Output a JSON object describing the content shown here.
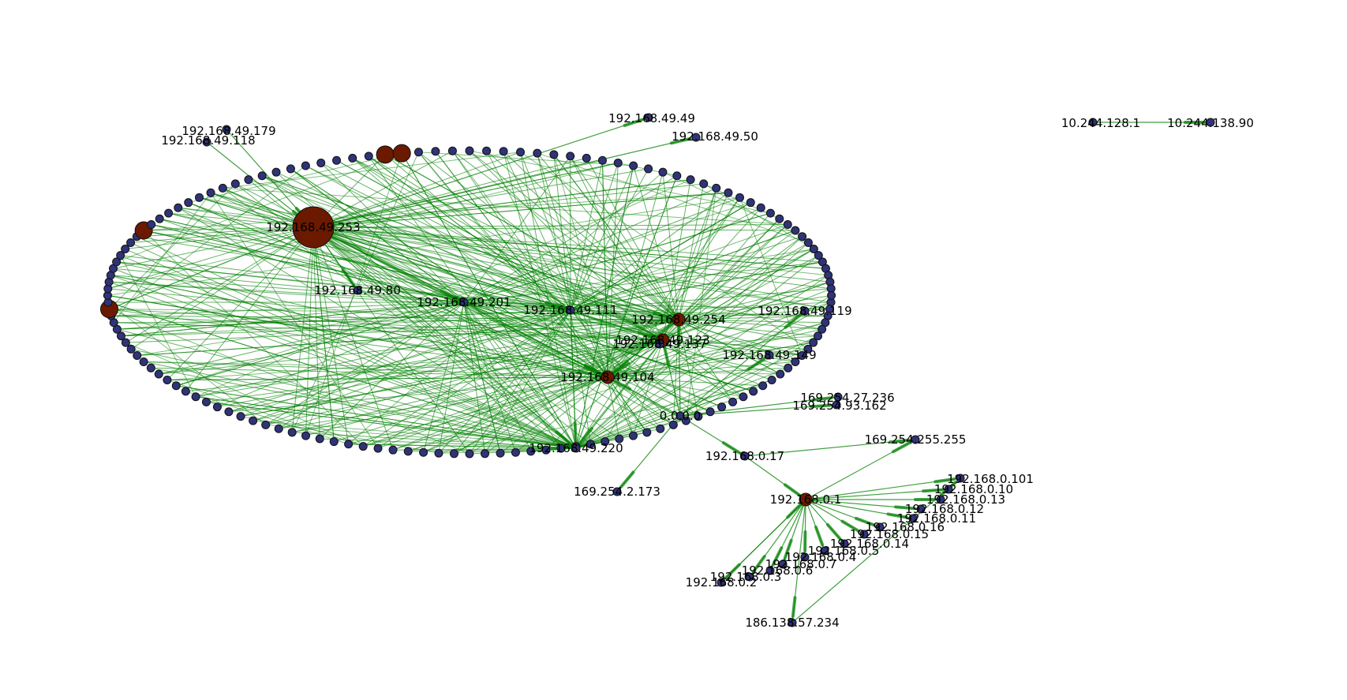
{
  "colors": {
    "edge": "#008000",
    "node_default": "#2f3377",
    "node_hub": "#6b1a00",
    "node_outline": "#111111",
    "background": "#ffffff"
  },
  "graph": {
    "nodes": [
      {
        "id": "192.168.49.253",
        "label": "192.168.49.253",
        "kind": "hub",
        "weight": 6
      },
      {
        "id": "192.168.49.179",
        "label": "192.168.49.179",
        "kind": "host",
        "weight": 1
      },
      {
        "id": "192.168.49.118",
        "label": "192.168.49.118",
        "kind": "host",
        "weight": 1
      },
      {
        "id": "192.168.49.49",
        "label": "192.168.49.49",
        "kind": "host",
        "weight": 1
      },
      {
        "id": "192.168.49.50",
        "label": "192.168.49.50",
        "kind": "host",
        "weight": 1
      },
      {
        "id": "192.168.49.80",
        "label": "192.168.49.80",
        "kind": "host",
        "weight": 1
      },
      {
        "id": "192.168.49.201",
        "label": "192.168.49.201",
        "kind": "host",
        "weight": 1
      },
      {
        "id": "192.168.49.111",
        "label": "192.168.49.111",
        "kind": "host",
        "weight": 1
      },
      {
        "id": "192.168.49.254",
        "label": "192.168.49.254",
        "kind": "hub",
        "weight": 2
      },
      {
        "id": "192.168.49.123",
        "label": "192.168.49.123",
        "kind": "hub",
        "weight": 2
      },
      {
        "id": "192.168.49.137",
        "label": "192.168.49.137",
        "kind": "host",
        "weight": 1
      },
      {
        "id": "192.168.49.104",
        "label": "192.168.49.104",
        "kind": "hub",
        "weight": 2
      },
      {
        "id": "192.168.49.220",
        "label": "192.168.49.220",
        "kind": "host",
        "weight": 1
      },
      {
        "id": "192.168.49.149",
        "label": "192.168.49.149",
        "kind": "host",
        "weight": 1
      },
      {
        "id": "192.168.49.119",
        "label": "192.168.49.119",
        "kind": "host",
        "weight": 1
      },
      {
        "id": "0.0.0.0",
        "label": "0.0.0.0",
        "kind": "host",
        "weight": 1
      },
      {
        "id": "169.254.27.236",
        "label": "169.254.27.236",
        "kind": "host",
        "weight": 1
      },
      {
        "id": "169.254.93.162",
        "label": "169.254.93.162",
        "kind": "host",
        "weight": 1
      },
      {
        "id": "169.254.2.173",
        "label": "169.254.2.173",
        "kind": "host",
        "weight": 1
      },
      {
        "id": "169.254.255.255",
        "label": "169.254.255.255",
        "kind": "host",
        "weight": 1
      },
      {
        "id": "192.168.0.17",
        "label": "192.168.0.17",
        "kind": "host",
        "weight": 1
      },
      {
        "id": "192.168.0.1",
        "label": "192.168.0.1",
        "kind": "hub",
        "weight": 2
      },
      {
        "id": "192.168.0.101",
        "label": "192.168.0.101",
        "kind": "host",
        "weight": 1
      },
      {
        "id": "192.168.0.10",
        "label": "192.168.0.10",
        "kind": "host",
        "weight": 1
      },
      {
        "id": "192.168.0.13",
        "label": "192.168.0.13",
        "kind": "host",
        "weight": 1
      },
      {
        "id": "192.168.0.12",
        "label": "192.168.0.12",
        "kind": "host",
        "weight": 1
      },
      {
        "id": "192.168.0.11",
        "label": "192.168.0.11",
        "kind": "host",
        "weight": 1
      },
      {
        "id": "192.168.0.16",
        "label": "192.168.0.16",
        "kind": "host",
        "weight": 1
      },
      {
        "id": "192.168.0.15",
        "label": "192.168.0.15",
        "kind": "host",
        "weight": 1
      },
      {
        "id": "192.168.0.14",
        "label": "192.168.0.14",
        "kind": "host",
        "weight": 1
      },
      {
        "id": "192.168.0.5",
        "label": "192.168.0.5",
        "kind": "host",
        "weight": 1
      },
      {
        "id": "192.168.0.4",
        "label": "192.168.0.4",
        "kind": "host",
        "weight": 1
      },
      {
        "id": "192.168.0.7",
        "label": "192.168.0.7",
        "kind": "host",
        "weight": 1
      },
      {
        "id": "192.168.0.6",
        "label": "192.168.0.6",
        "kind": "host",
        "weight": 1
      },
      {
        "id": "192.168.0.3",
        "label": "192.168.0.3",
        "kind": "host",
        "weight": 1
      },
      {
        "id": "192.168.0.2",
        "label": "192.168.0.2",
        "kind": "host",
        "weight": 1
      },
      {
        "id": "186.138.57.234",
        "label": "186.138.57.234",
        "kind": "host",
        "weight": 1
      },
      {
        "id": "10.244.128.1",
        "label": "10.244.128.1",
        "kind": "host",
        "weight": 1
      },
      {
        "id": "10.244.138.90",
        "label": "10.244.138.90",
        "kind": "host",
        "weight": 1
      }
    ],
    "edges": [
      [
        "192.168.49.179",
        "192.168.49.253"
      ],
      [
        "192.168.49.118",
        "192.168.49.253"
      ],
      [
        "192.168.49.253",
        "192.168.49.49"
      ],
      [
        "192.168.49.253",
        "192.168.49.50"
      ],
      [
        "192.168.49.253",
        "192.168.49.80"
      ],
      [
        "192.168.49.253",
        "192.168.49.201"
      ],
      [
        "192.168.49.253",
        "192.168.49.111"
      ],
      [
        "192.168.49.253",
        "192.168.49.254"
      ],
      [
        "192.168.49.253",
        "192.168.49.123"
      ],
      [
        "192.168.49.253",
        "192.168.49.104"
      ],
      [
        "192.168.49.253",
        "192.168.49.220"
      ],
      [
        "192.168.49.201",
        "192.168.49.104"
      ],
      [
        "192.168.49.111",
        "192.168.49.220"
      ],
      [
        "192.168.49.254",
        "192.168.49.104"
      ],
      [
        "192.168.49.123",
        "192.168.49.220"
      ],
      [
        "192.168.49.137",
        "192.168.49.104"
      ],
      [
        "0.0.0.0",
        "192.168.49.254"
      ],
      [
        "0.0.0.0",
        "192.168.49.123"
      ],
      [
        "0.0.0.0",
        "192.168.49.104"
      ],
      [
        "0.0.0.0",
        "192.168.49.149"
      ],
      [
        "0.0.0.0",
        "192.168.49.119"
      ],
      [
        "0.0.0.0",
        "169.254.27.236"
      ],
      [
        "0.0.0.0",
        "169.254.93.162"
      ],
      [
        "0.0.0.0",
        "169.254.2.173"
      ],
      [
        "0.0.0.0",
        "192.168.0.17"
      ],
      [
        "192.168.0.17",
        "169.254.255.255"
      ],
      [
        "192.168.0.17",
        "192.168.0.1"
      ],
      [
        "192.168.0.1",
        "169.254.255.255"
      ],
      [
        "192.168.0.1",
        "192.168.0.101"
      ],
      [
        "192.168.0.1",
        "192.168.0.10"
      ],
      [
        "192.168.0.1",
        "192.168.0.13"
      ],
      [
        "192.168.0.1",
        "192.168.0.12"
      ],
      [
        "192.168.0.1",
        "192.168.0.11"
      ],
      [
        "192.168.0.1",
        "192.168.0.16"
      ],
      [
        "192.168.0.1",
        "192.168.0.15"
      ],
      [
        "192.168.0.1",
        "192.168.0.14"
      ],
      [
        "192.168.0.1",
        "192.168.0.5"
      ],
      [
        "192.168.0.1",
        "192.168.0.4"
      ],
      [
        "192.168.0.1",
        "192.168.0.7"
      ],
      [
        "192.168.0.1",
        "192.168.0.6"
      ],
      [
        "192.168.0.1",
        "192.168.0.3"
      ],
      [
        "192.168.0.1",
        "192.168.0.2"
      ],
      [
        "192.168.0.1",
        "186.138.57.234"
      ],
      [
        "186.138.57.234",
        "192.168.0.101"
      ],
      [
        "192.168.0.2",
        "192.168.0.1"
      ],
      [
        "10.244.128.1",
        "10.244.138.90"
      ]
    ]
  }
}
